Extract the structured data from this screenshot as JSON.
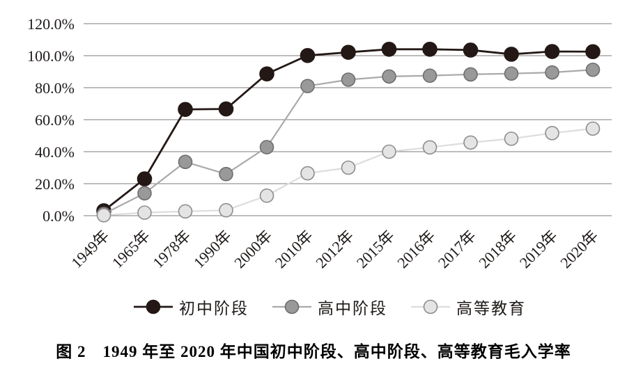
{
  "figure": {
    "caption": "图 2　1949 年至 2020 年中国初中阶段、高中阶段、高等教育毛入学率"
  },
  "chart_data": {
    "type": "line",
    "title": "",
    "xlabel": "",
    "ylabel": "",
    "categories": [
      "1949年",
      "1965年",
      "1978年",
      "1990年",
      "2000年",
      "2010年",
      "2012年",
      "2015年",
      "2016年",
      "2017年",
      "2018年",
      "2019年",
      "2020年"
    ],
    "series": [
      {
        "name": "初中阶段",
        "color": "#231815",
        "marker_fill": "#231815",
        "marker_stroke": "#231815",
        "values": [
          3.1,
          23.0,
          66.4,
          66.7,
          88.6,
          100.1,
          102.1,
          104.0,
          104.0,
          103.5,
          100.9,
          102.6,
          102.5
        ]
      },
      {
        "name": "高中阶段",
        "color": "#a9a9a9",
        "marker_fill": "#999999",
        "marker_stroke": "#6e6e6e",
        "values": [
          1.1,
          14.0,
          33.6,
          26.0,
          42.8,
          81.0,
          85.0,
          87.0,
          87.5,
          88.3,
          88.8,
          89.5,
          91.2
        ]
      },
      {
        "name": "高等教育",
        "color": "#dedcdc",
        "marker_fill": "#e4e4e4",
        "marker_stroke": "#8d8d8d",
        "values": [
          0.3,
          1.9,
          2.7,
          3.4,
          12.5,
          26.5,
          30.0,
          40.0,
          42.7,
          45.7,
          48.1,
          51.6,
          54.4
        ]
      }
    ],
    "yticks": [
      {
        "label": "0.0%",
        "value": 0
      },
      {
        "label": "20.0%",
        "value": 20
      },
      {
        "label": "40.0%",
        "value": 40
      },
      {
        "label": "60.0%",
        "value": 60
      },
      {
        "label": "80.0%",
        "value": 80
      },
      {
        "label": "100.0%",
        "value": 100
      },
      {
        "label": "120.0%",
        "value": 120
      }
    ],
    "ylim": [
      0,
      120
    ],
    "grid": "horizontal",
    "gridline_color": "#7f7878",
    "legend_position": "bottom"
  }
}
